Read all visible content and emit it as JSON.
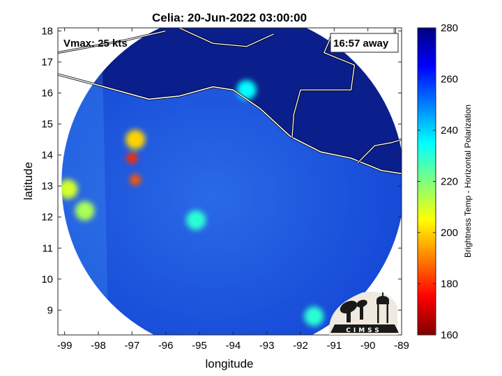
{
  "chart_data": {
    "type": "heatmap",
    "title": "Celia: 20-Jun-2022 03:00:00",
    "xlabel": "longitude",
    "ylabel": "latitude",
    "xlim": [
      -99.2,
      -89
    ],
    "ylim": [
      8.2,
      18.1
    ],
    "xticks": [
      "-99",
      "-98",
      "-97",
      "-96",
      "-95",
      "-94",
      "-93",
      "-92",
      "-91",
      "-90",
      "-89"
    ],
    "yticks": [
      "9",
      "10",
      "11",
      "12",
      "13",
      "14",
      "15",
      "16",
      "17",
      "18"
    ],
    "colorbar": {
      "label": "Brightness Temp - Horizontal Polarization",
      "range": [
        160,
        280
      ],
      "ticks": [
        "280",
        "260",
        "240",
        "220",
        "200",
        "180",
        "160"
      ],
      "colormap": "jet"
    },
    "annotations": {
      "vmax": "Vmax: 25 kts",
      "away": "16:57 away"
    },
    "swath_center": {
      "lon": -94,
      "lat": 13.1
    },
    "field_features": [
      {
        "lon": -96.9,
        "lat": 14.5,
        "value": 200
      },
      {
        "lon": -97.0,
        "lat": 13.9,
        "value": 180
      },
      {
        "lon": -96.9,
        "lat": 13.2,
        "value": 185
      },
      {
        "lon": -98.9,
        "lat": 12.9,
        "value": 210
      },
      {
        "lon": -98.4,
        "lat": 12.2,
        "value": 215
      },
      {
        "lon": -95.1,
        "lat": 11.9,
        "value": 230
      },
      {
        "lon": -93.6,
        "lat": 16.1,
        "value": 235
      },
      {
        "lon": -91.6,
        "lat": 8.8,
        "value": 230
      }
    ]
  },
  "logo": {
    "text": "CIMSS"
  },
  "colors": {
    "land": "#0a1e8c",
    "ocean": "#1c5ee6",
    "coast": "#ffffff"
  }
}
